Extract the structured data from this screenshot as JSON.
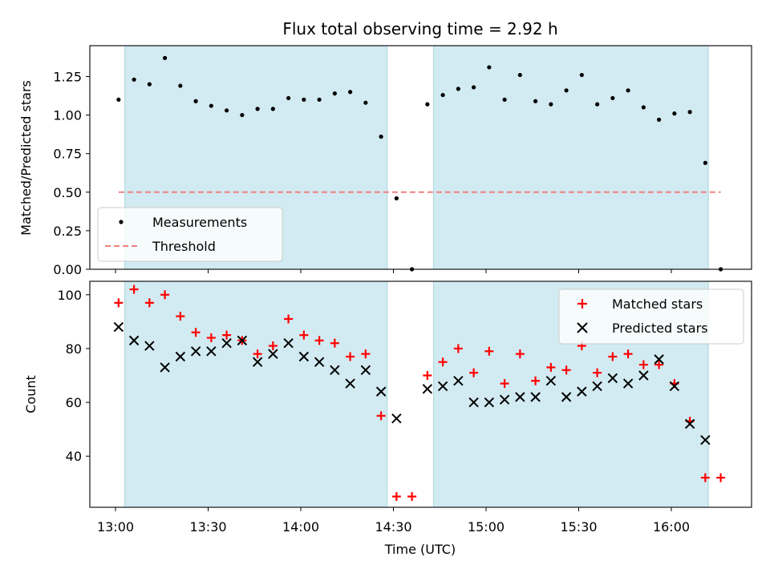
{
  "title": "Flux total observing time = 2.92 h",
  "chart_data": [
    {
      "type": "scatter",
      "ylabel": "Matched/Predicted stars",
      "ylim": [
        0,
        1.45
      ],
      "yticks": [
        "0.00",
        "0.25",
        "0.50",
        "0.75",
        "1.00",
        "1.25"
      ],
      "ytick_values": [
        0,
        0.25,
        0.5,
        0.75,
        1.0,
        1.25
      ],
      "legend_position": "lower-left",
      "shaded_intervals": [
        [
          "13:03",
          "14:28"
        ],
        [
          "14:43",
          "16:12"
        ]
      ],
      "threshold": {
        "name": "Threshold",
        "value": 0.5,
        "color": "#f08080"
      },
      "series": [
        {
          "name": "Measurements",
          "marker": "dot",
          "color": "#000000",
          "x": [
            "13:01",
            "13:06",
            "13:11",
            "13:16",
            "13:21",
            "13:26",
            "13:31",
            "13:36",
            "13:41",
            "13:46",
            "13:51",
            "13:56",
            "14:01",
            "14:06",
            "14:11",
            "14:16",
            "14:21",
            "14:26",
            "14:31",
            "14:36",
            "14:41",
            "14:46",
            "14:51",
            "14:56",
            "15:01",
            "15:06",
            "15:11",
            "15:16",
            "15:21",
            "15:26",
            "15:31",
            "15:36",
            "15:41",
            "15:46",
            "15:51",
            "15:56",
            "16:01",
            "16:06",
            "16:11",
            "16:16"
          ],
          "y": [
            1.1,
            1.23,
            1.2,
            1.37,
            1.19,
            1.09,
            1.06,
            1.03,
            1.0,
            1.04,
            1.04,
            1.11,
            1.1,
            1.1,
            1.14,
            1.15,
            1.08,
            0.86,
            0.46,
            0.0,
            1.07,
            1.13,
            1.17,
            1.18,
            1.31,
            1.1,
            1.26,
            1.09,
            1.07,
            1.16,
            1.26,
            1.07,
            1.11,
            1.16,
            1.05,
            0.97,
            1.01,
            1.02,
            0.69,
            0.0
          ]
        }
      ]
    },
    {
      "type": "scatter",
      "xlabel": "Time (UTC)",
      "ylabel": "Count",
      "ylim": [
        21,
        105
      ],
      "yticks": [
        "40",
        "60",
        "80",
        "100"
      ],
      "ytick_values": [
        40,
        60,
        80,
        100
      ],
      "xticks": [
        "13:00",
        "13:30",
        "14:00",
        "14:30",
        "15:00",
        "15:30",
        "16:00"
      ],
      "legend_position": "top-right",
      "shaded_intervals": [
        [
          "13:03",
          "14:28"
        ],
        [
          "14:43",
          "16:12"
        ]
      ],
      "series": [
        {
          "name": "Matched stars",
          "marker": "plus",
          "color": "#ff0000",
          "x": [
            "13:01",
            "13:06",
            "13:11",
            "13:16",
            "13:21",
            "13:26",
            "13:31",
            "13:36",
            "13:41",
            "13:46",
            "13:51",
            "13:56",
            "14:01",
            "14:06",
            "14:11",
            "14:16",
            "14:21",
            "14:26",
            "14:31",
            "14:36",
            "14:41",
            "14:46",
            "14:51",
            "14:56",
            "15:01",
            "15:06",
            "15:11",
            "15:16",
            "15:21",
            "15:26",
            "15:31",
            "15:36",
            "15:41",
            "15:46",
            "15:51",
            "15:56",
            "16:01",
            "16:06",
            "16:11",
            "16:16"
          ],
          "y": [
            97,
            102,
            97,
            100,
            92,
            86,
            84,
            85,
            83,
            78,
            81,
            91,
            85,
            83,
            82,
            77,
            78,
            55,
            25,
            25,
            70,
            75,
            80,
            71,
            79,
            67,
            78,
            68,
            73,
            72,
            81,
            71,
            77,
            78,
            74,
            74,
            67,
            53,
            32,
            32
          ]
        },
        {
          "name": "Predicted stars",
          "marker": "x",
          "color": "#000000",
          "x": [
            "13:01",
            "13:06",
            "13:11",
            "13:16",
            "13:21",
            "13:26",
            "13:31",
            "13:36",
            "13:41",
            "13:46",
            "13:51",
            "13:56",
            "14:01",
            "14:06",
            "14:11",
            "14:16",
            "14:21",
            "14:26",
            "14:31",
            "14:41",
            "14:46",
            "14:51",
            "14:56",
            "15:01",
            "15:06",
            "15:11",
            "15:16",
            "15:21",
            "15:26",
            "15:31",
            "15:36",
            "15:41",
            "15:46",
            "15:51",
            "15:56",
            "16:01",
            "16:06",
            "16:11"
          ],
          "y": [
            88,
            83,
            81,
            73,
            77,
            79,
            79,
            82,
            83,
            75,
            78,
            82,
            77,
            75,
            72,
            67,
            72,
            64,
            54,
            65,
            66,
            68,
            60,
            60,
            61,
            62,
            62,
            68,
            62,
            64,
            66,
            69,
            67,
            70,
            76,
            66,
            52,
            46
          ]
        }
      ]
    }
  ],
  "colors": {
    "shade": "#add8e6",
    "shade_edge": "#a8d8e0"
  }
}
